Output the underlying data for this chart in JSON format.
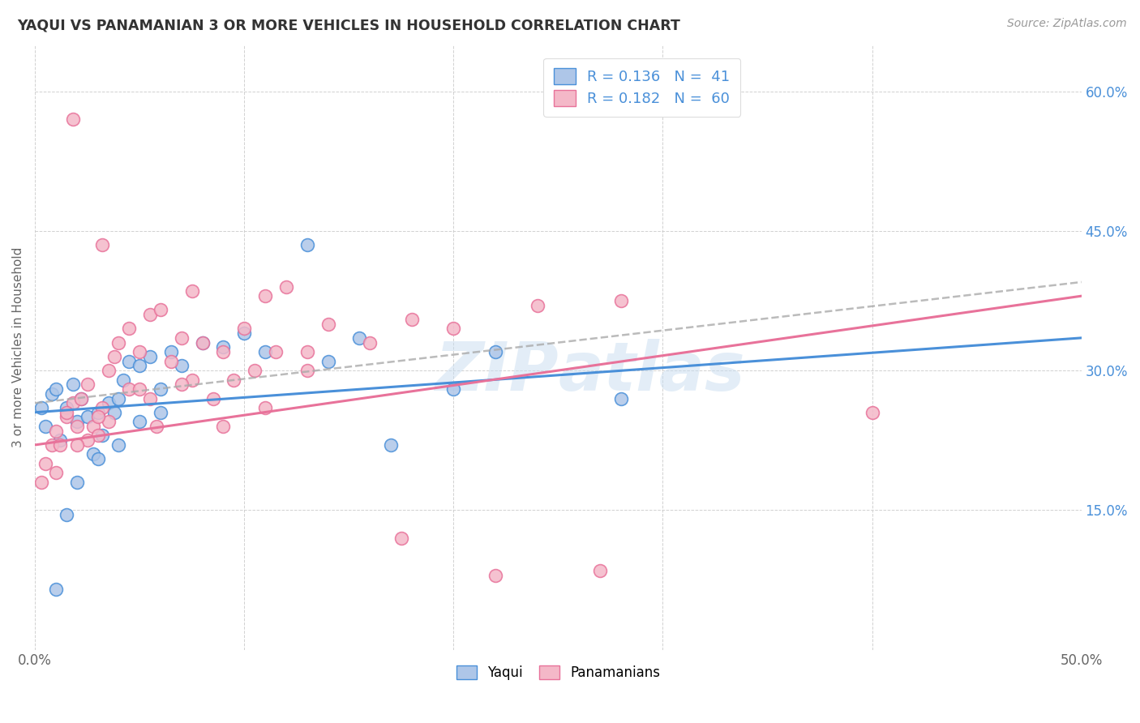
{
  "title": "YAQUI VS PANAMANIAN 3 OR MORE VEHICLES IN HOUSEHOLD CORRELATION CHART",
  "source": "Source: ZipAtlas.com",
  "ylabel": "3 or more Vehicles in Household",
  "xmin": 0.0,
  "xmax": 50.0,
  "ymin": 0.0,
  "ymax": 65.0,
  "color_yaqui": "#aec6e8",
  "color_panama": "#f4b8c8",
  "color_line_yaqui": "#4a90d9",
  "color_line_panama": "#e8729a",
  "color_dashed": "#aaaaaa",
  "background_color": "#ffffff",
  "grid_color": "#cccccc",
  "title_color": "#333333",
  "axis_label_color": "#666666",
  "right_tick_color": "#4a90d9",
  "watermark_color": "#c8ddf0",
  "yaqui_x": [
    0.3,
    0.5,
    0.8,
    1.0,
    1.2,
    1.5,
    1.8,
    2.0,
    2.2,
    2.5,
    2.8,
    3.0,
    3.2,
    3.5,
    3.8,
    4.0,
    4.2,
    4.5,
    5.0,
    5.5,
    6.0,
    6.5,
    7.0,
    8.0,
    9.0,
    10.0,
    11.0,
    13.0,
    14.0,
    15.5,
    17.0,
    20.0,
    22.0,
    28.0,
    1.5,
    2.0,
    3.0,
    4.0,
    5.0,
    6.0,
    1.0
  ],
  "yaqui_y": [
    26.0,
    24.0,
    27.5,
    28.0,
    22.5,
    26.0,
    28.5,
    24.5,
    27.0,
    25.0,
    21.0,
    25.5,
    23.0,
    26.5,
    25.5,
    27.0,
    29.0,
    31.0,
    30.5,
    31.5,
    28.0,
    32.0,
    30.5,
    33.0,
    32.5,
    34.0,
    32.0,
    43.5,
    31.0,
    33.5,
    22.0,
    28.0,
    32.0,
    27.0,
    14.5,
    18.0,
    20.5,
    22.0,
    24.5,
    25.5,
    6.5
  ],
  "panama_x": [
    0.3,
    0.5,
    0.8,
    1.0,
    1.2,
    1.5,
    1.8,
    2.0,
    2.2,
    2.5,
    2.8,
    3.0,
    3.2,
    3.5,
    3.8,
    4.0,
    4.5,
    5.0,
    5.5,
    6.0,
    6.5,
    7.0,
    7.5,
    8.0,
    9.0,
    10.0,
    11.0,
    12.0,
    13.0,
    14.0,
    16.0,
    18.0,
    20.0,
    24.0,
    28.0,
    40.0,
    1.5,
    2.5,
    3.5,
    4.5,
    5.5,
    7.5,
    9.5,
    11.5,
    1.0,
    2.0,
    3.0,
    5.0,
    7.0,
    9.0,
    11.0,
    13.0,
    1.8,
    3.2,
    5.8,
    8.5,
    10.5,
    17.5,
    22.0,
    27.0
  ],
  "panama_y": [
    18.0,
    20.0,
    22.0,
    23.5,
    22.0,
    25.0,
    26.5,
    24.0,
    27.0,
    28.5,
    24.0,
    23.0,
    26.0,
    24.5,
    31.5,
    33.0,
    34.5,
    32.0,
    36.0,
    36.5,
    31.0,
    33.5,
    38.5,
    33.0,
    32.0,
    34.5,
    38.0,
    39.0,
    32.0,
    35.0,
    33.0,
    35.5,
    34.5,
    37.0,
    37.5,
    25.5,
    25.5,
    22.5,
    30.0,
    28.0,
    27.0,
    29.0,
    29.0,
    32.0,
    19.0,
    22.0,
    25.0,
    28.0,
    28.5,
    24.0,
    26.0,
    30.0,
    57.0,
    43.5,
    24.0,
    27.0,
    30.0,
    12.0,
    8.0,
    8.5
  ],
  "reg_yaqui_x0": 0.0,
  "reg_yaqui_y0": 25.5,
  "reg_yaqui_x1": 50.0,
  "reg_yaqui_y1": 33.5,
  "reg_panama_x0": 0.0,
  "reg_panama_y0": 22.0,
  "reg_panama_x1": 50.0,
  "reg_panama_y1": 38.0,
  "reg_dash_x0": 0.0,
  "reg_dash_y0": 26.5,
  "reg_dash_x1": 50.0,
  "reg_dash_y1": 39.5
}
